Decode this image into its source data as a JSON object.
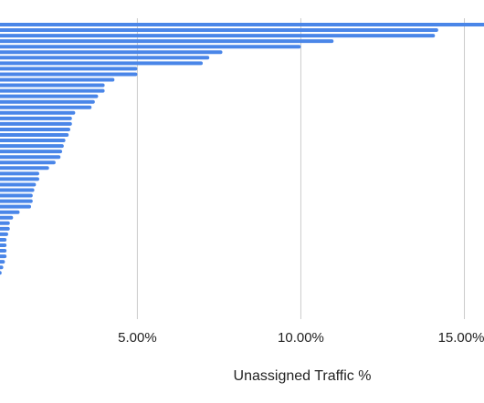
{
  "chart_data": {
    "type": "bar",
    "orientation": "horizontal",
    "xlabel": "Unassigned Traffic %",
    "x_ticks": [
      "5.00%",
      "10.00%",
      "15.00%"
    ],
    "x_tick_values": [
      5,
      10,
      15
    ],
    "xlim": [
      0.8,
      15.6
    ],
    "grid": true,
    "legend": "none",
    "bar_color": "#4a86e8",
    "grid_color": "#cccccc",
    "values": [
      15.7,
      14.2,
      14.1,
      11.0,
      10.0,
      7.6,
      7.2,
      7.0,
      5.0,
      5.0,
      4.3,
      4.0,
      4.0,
      3.8,
      3.7,
      3.6,
      3.1,
      3.0,
      3.0,
      2.95,
      2.9,
      2.8,
      2.75,
      2.7,
      2.65,
      2.5,
      2.3,
      2.0,
      2.0,
      1.9,
      1.85,
      1.8,
      1.8,
      1.75,
      1.4,
      1.2,
      1.1,
      1.1,
      1.05,
      1.0,
      1.0,
      1.0,
      1.0,
      0.95,
      0.9,
      0.85
    ]
  }
}
